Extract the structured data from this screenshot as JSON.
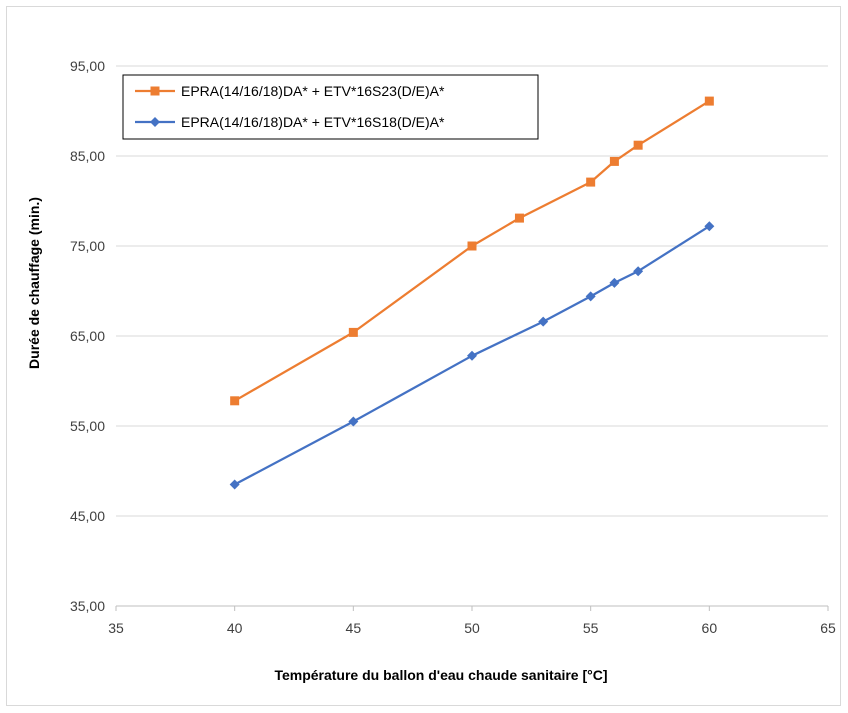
{
  "chart_data": {
    "type": "line",
    "title": "",
    "xlabel": "Température du ballon d'eau chaude sanitaire [°C]",
    "ylabel": "Durée de chauffage (min.)",
    "xlim": [
      35,
      65
    ],
    "ylim": [
      35,
      95
    ],
    "x_ticks": [
      "35",
      "40",
      "45",
      "50",
      "55",
      "60",
      "65"
    ],
    "y_ticks": [
      "35,00",
      "45,00",
      "55,00",
      "65,00",
      "75,00",
      "85,00",
      "95,00"
    ],
    "grid": "horizontal",
    "legend_position": "top-left",
    "series": [
      {
        "name": "EPRA(14/16/18)DA* + ETV*16S23(D/E)A*",
        "color": "#ED7D31",
        "marker": "square",
        "points": [
          {
            "x": 40,
            "y": 57.8
          },
          {
            "x": 45,
            "y": 65.4
          },
          {
            "x": 50,
            "y": 75.0
          },
          {
            "x": 52,
            "y": 78.1
          },
          {
            "x": 55,
            "y": 82.1
          },
          {
            "x": 56,
            "y": 84.4
          },
          {
            "x": 57,
            "y": 86.2
          },
          {
            "x": 60,
            "y": 91.1
          }
        ]
      },
      {
        "name": "EPRA(14/16/18)DA* + ETV*16S18(D/E)A*",
        "color": "#4472C4",
        "marker": "diamond",
        "points": [
          {
            "x": 40,
            "y": 48.5
          },
          {
            "x": 45,
            "y": 55.5
          },
          {
            "x": 50,
            "y": 62.8
          },
          {
            "x": 53,
            "y": 66.6
          },
          {
            "x": 55,
            "y": 69.4
          },
          {
            "x": 56,
            "y": 70.9
          },
          {
            "x": 57,
            "y": 72.2
          },
          {
            "x": 60,
            "y": 77.2
          }
        ]
      }
    ]
  }
}
